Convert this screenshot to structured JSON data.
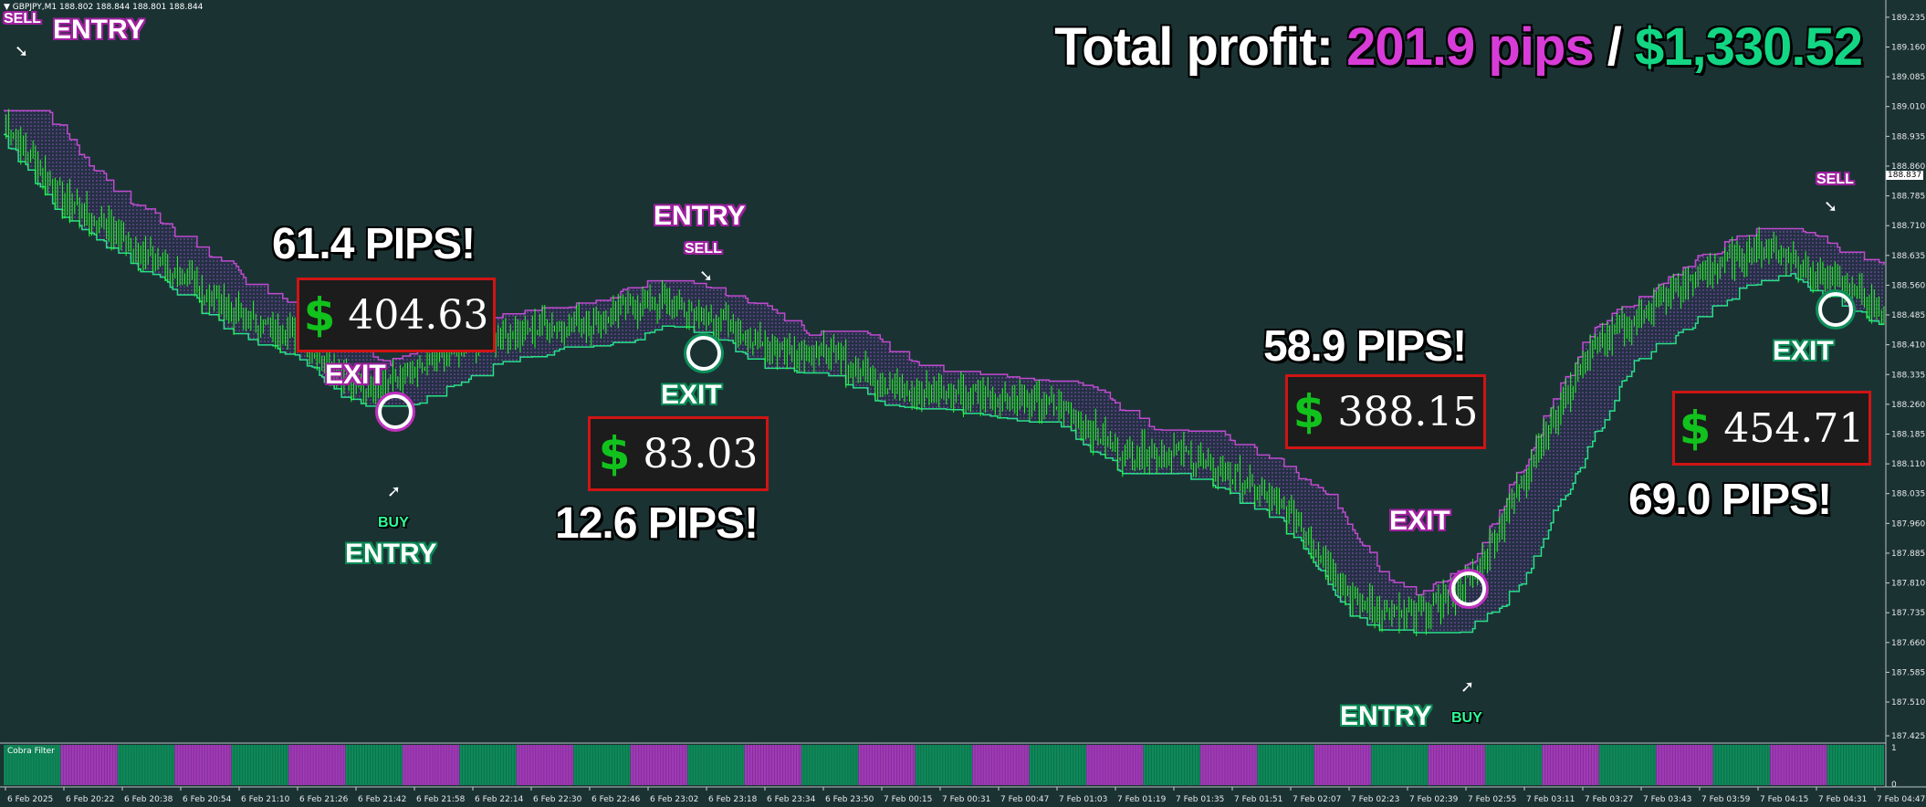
{
  "symbol_line": "▼ GBPJPY,M1  188.802 188.844 188.801 188.844",
  "headline": {
    "prefix": "Total profit: ",
    "pips": "201.9 pips",
    "separator": " / ",
    "usd": "$1,330.52"
  },
  "annotations": {
    "sell_1": "SELL",
    "entry_1": "ENTRY",
    "pips_1": "61.4 PIPS!",
    "money_1": "404.63",
    "exit_1": "EXIT",
    "buy_1": "BUY",
    "entry_2": "ENTRY",
    "entry_3": "ENTRY",
    "sell_2": "SELL",
    "exit_2": "EXIT",
    "money_2": "83.03",
    "pips_2": "12.6 PIPS!",
    "pips_3": "58.9 PIPS!",
    "money_3": "388.15",
    "exit_3": "EXIT",
    "entry_4": "ENTRY",
    "buy_2": "BUY",
    "sell_3": "SELL",
    "exit_4": "EXIT",
    "money_4": "454.71",
    "pips_4": "69.0 PIPS!",
    "dollar_sign": "$"
  },
  "indicator_name": "Cobra Filter",
  "price_axis": [
    "189.235",
    "189.160",
    "189.085",
    "189.010",
    "188.935",
    "188.860",
    "188.785",
    "188.710",
    "188.635",
    "188.560",
    "188.485",
    "188.410",
    "188.335",
    "188.260",
    "188.185",
    "188.110",
    "188.035",
    "187.960",
    "187.885",
    "187.810",
    "187.735",
    "187.660",
    "187.585",
    "187.510",
    "187.425"
  ],
  "current_price": "188.837",
  "indicator_axis": [
    "1",
    "0"
  ],
  "time_axis": [
    "6 Feb 2025",
    "6 Feb 20:22",
    "6 Feb 20:38",
    "6 Feb 20:54",
    "6 Feb 21:10",
    "6 Feb 21:26",
    "6 Feb 21:42",
    "6 Feb 21:58",
    "6 Feb 22:14",
    "6 Feb 22:30",
    "6 Feb 22:46",
    "6 Feb 23:02",
    "6 Feb 23:18",
    "6 Feb 23:34",
    "6 Feb 23:50",
    "7 Feb 00:15",
    "7 Feb 00:31",
    "7 Feb 00:47",
    "7 Feb 01:03",
    "7 Feb 01:19",
    "7 Feb 01:35",
    "7 Feb 01:51",
    "7 Feb 02:07",
    "7 Feb 02:23",
    "7 Feb 02:39",
    "7 Feb 02:55",
    "7 Feb 03:11",
    "7 Feb 03:27",
    "7 Feb 03:43",
    "7 Feb 03:59",
    "7 Feb 04:15",
    "7 Feb 04:31",
    "7 Feb 04:47"
  ],
  "colors": {
    "background": "#1b3233",
    "sell_band": "#c04ad0",
    "buy_band": "#29e08a",
    "candle": "#22ff22",
    "filter_buy": "#0f8a5a",
    "filter_sell": "#a13ab8"
  },
  "chart_data": {
    "type": "line",
    "title": "",
    "xlabel": "",
    "ylabel": "",
    "ylim": [
      187.425,
      189.26
    ],
    "x": [
      "6 Feb 2025",
      "6 Feb 20:22",
      "6 Feb 20:38",
      "6 Feb 20:54",
      "6 Feb 21:10",
      "6 Feb 21:26",
      "6 Feb 21:42",
      "6 Feb 21:58",
      "6 Feb 22:14",
      "6 Feb 22:30",
      "6 Feb 22:46",
      "6 Feb 23:02",
      "6 Feb 23:18",
      "6 Feb 23:34",
      "6 Feb 23:50",
      "7 Feb 00:15",
      "7 Feb 00:31",
      "7 Feb 00:47",
      "7 Feb 01:03",
      "7 Feb 01:19",
      "7 Feb 01:35",
      "7 Feb 01:51",
      "7 Feb 02:07",
      "7 Feb 02:23",
      "7 Feb 02:39",
      "7 Feb 02:55",
      "7 Feb 03:11",
      "7 Feb 03:27",
      "7 Feb 03:43",
      "7 Feb 03:59",
      "7 Feb 04:15",
      "7 Feb 04:31",
      "7 Feb 04:47"
    ],
    "series": [
      {
        "values": [
          188.97,
          188.78,
          188.68,
          188.58,
          188.48,
          188.43,
          188.3,
          188.34,
          188.42,
          188.45,
          188.47,
          188.52,
          188.48,
          188.4,
          188.39,
          188.31,
          188.29,
          188.28,
          188.25,
          188.14,
          188.14,
          188.07,
          187.97,
          187.76,
          187.72,
          187.82,
          188.12,
          188.4,
          188.5,
          188.6,
          188.66,
          188.58,
          188.5
        ]
      }
    ],
    "filter_segments": [
      "buy",
      "sell",
      "buy",
      "sell",
      "buy",
      "sell",
      "buy",
      "sell",
      "buy",
      "sell",
      "buy",
      "sell",
      "buy",
      "sell",
      "buy",
      "sell",
      "buy",
      "sell",
      "buy",
      "sell",
      "buy",
      "sell",
      "buy",
      "sell",
      "buy",
      "sell",
      "buy",
      "sell",
      "buy",
      "sell",
      "buy",
      "sell",
      "buy"
    ]
  }
}
